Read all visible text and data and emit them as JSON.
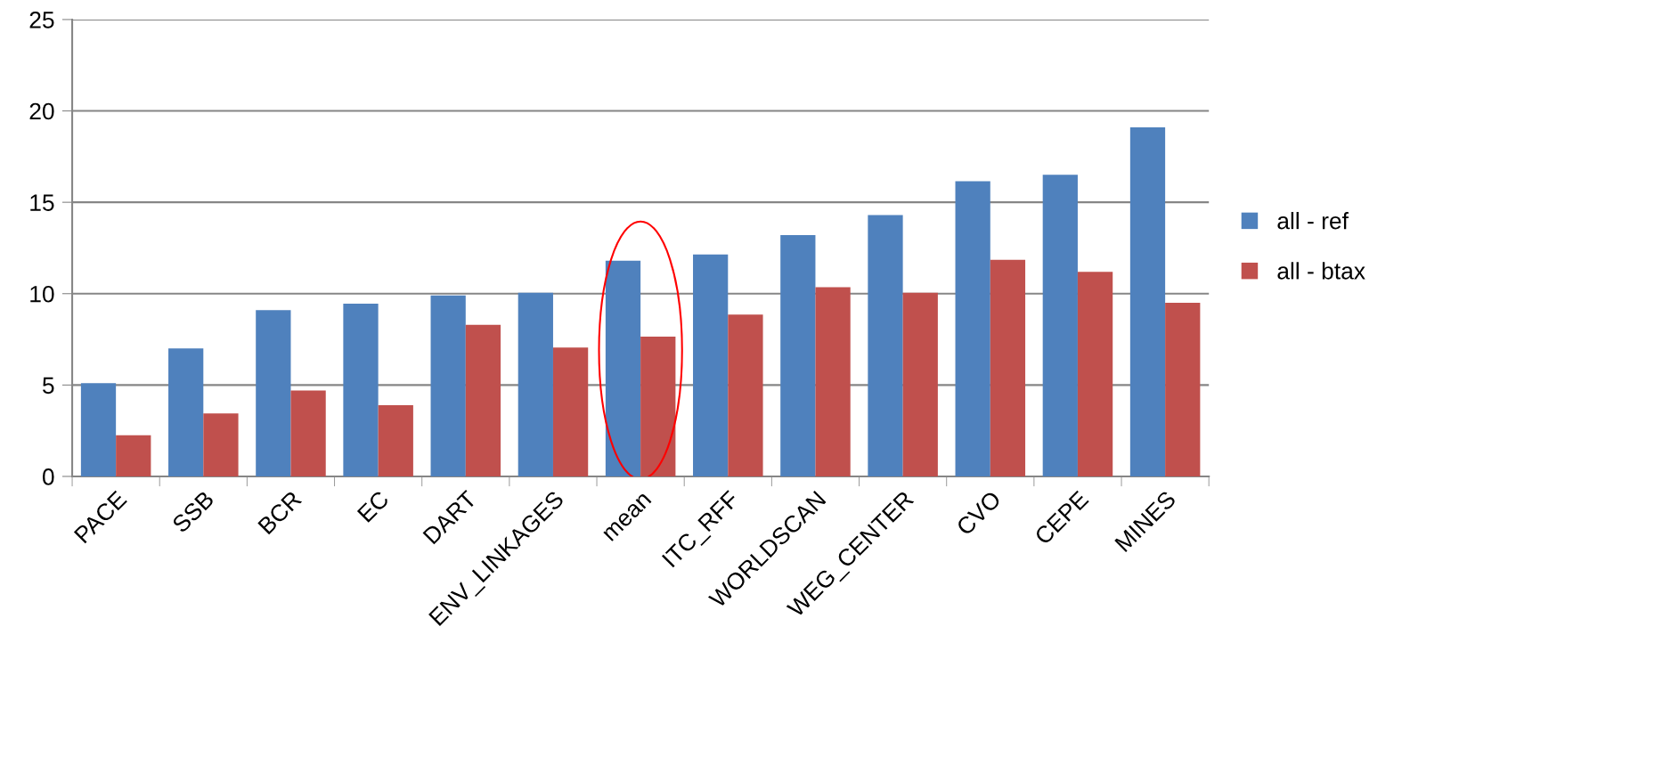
{
  "chart_data": {
    "type": "bar",
    "categories": [
      "PACE",
      "SSB",
      "BCR",
      "EC",
      "DART",
      "ENV_LINKAGES",
      "mean",
      "ITC_RFF",
      "WORLDSCAN",
      "WEG_CENTER",
      "CVO",
      "CEPE",
      "MINES"
    ],
    "series": [
      {
        "name": "all - ref",
        "color": "#4f81bd",
        "values": [
          5.1,
          7.0,
          9.1,
          9.45,
          9.9,
          10.05,
          11.8,
          12.15,
          13.2,
          14.3,
          16.15,
          16.5,
          19.1
        ]
      },
      {
        "name": "all - btax",
        "color": "#c0504d",
        "values": [
          2.25,
          3.45,
          4.7,
          3.9,
          8.3,
          7.05,
          7.65,
          8.85,
          10.35,
          10.05,
          11.85,
          11.2,
          9.5
        ]
      }
    ],
    "ylim": [
      0,
      25
    ],
    "yticks": [
      0,
      5,
      10,
      15,
      20,
      25
    ],
    "grid": "y",
    "legend": "right"
  }
}
